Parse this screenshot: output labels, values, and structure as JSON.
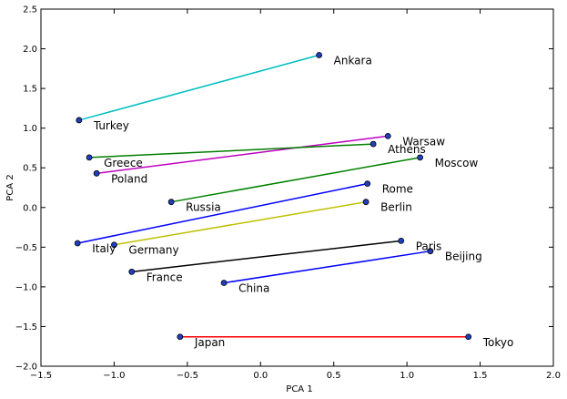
{
  "chart_data": {
    "type": "scatter",
    "title": "",
    "xlabel": "PCA 1",
    "ylabel": "PCA 2",
    "xlim": [
      -1.5,
      2.0
    ],
    "ylim": [
      -2.0,
      2.5
    ],
    "xticks": [
      -1.5,
      -1.0,
      -0.5,
      0.0,
      0.5,
      1.0,
      1.5,
      2.0
    ],
    "xtick_labels": [
      "−1.5",
      "−1.0",
      "−0.5",
      "0.0",
      "0.5",
      "1.0",
      "1.5",
      "2.0"
    ],
    "yticks": [
      -2.0,
      -1.5,
      -1.0,
      -0.5,
      0.0,
      0.5,
      1.0,
      1.5,
      2.0,
      2.5
    ],
    "ytick_labels": [
      "−2.0",
      "−1.5",
      "−1.0",
      "−0.5",
      "0.0",
      "0.5",
      "1.0",
      "1.5",
      "2.0",
      "2.5"
    ],
    "grid": false,
    "marker_color": "#1f3fbf",
    "points": [
      {
        "label": "Ankara",
        "x": 0.4,
        "y": 1.92
      },
      {
        "label": "Turkey",
        "x": -1.24,
        "y": 1.1
      },
      {
        "label": "Warsaw",
        "x": 0.87,
        "y": 0.9
      },
      {
        "label": "Athens",
        "x": 0.77,
        "y": 0.8
      },
      {
        "label": "Greece",
        "x": -1.17,
        "y": 0.63
      },
      {
        "label": "Poland",
        "x": -1.12,
        "y": 0.43
      },
      {
        "label": "Moscow",
        "x": 1.09,
        "y": 0.63
      },
      {
        "label": "Russia",
        "x": -0.61,
        "y": 0.07
      },
      {
        "label": "Rome",
        "x": 0.73,
        "y": 0.3
      },
      {
        "label": "Italy",
        "x": -1.25,
        "y": -0.45
      },
      {
        "label": "Berlin",
        "x": 0.72,
        "y": 0.07
      },
      {
        "label": "Germany",
        "x": -1.0,
        "y": -0.47
      },
      {
        "label": "Paris",
        "x": 0.96,
        "y": -0.42
      },
      {
        "label": "France",
        "x": -0.88,
        "y": -0.81
      },
      {
        "label": "Beijing",
        "x": 1.16,
        "y": -0.55
      },
      {
        "label": "China",
        "x": -0.25,
        "y": -0.95
      },
      {
        "label": "Tokyo",
        "x": 1.42,
        "y": -1.63
      },
      {
        "label": "Japan",
        "x": -0.55,
        "y": -1.63
      }
    ],
    "segments": [
      {
        "from": "Turkey",
        "to": "Ankara",
        "color": "#00bfbf"
      },
      {
        "from": "Poland",
        "to": "Warsaw",
        "color": "#bf00bf"
      },
      {
        "from": "Greece",
        "to": "Athens",
        "color": "#008000"
      },
      {
        "from": "Russia",
        "to": "Moscow",
        "color": "#008000"
      },
      {
        "from": "Italy",
        "to": "Rome",
        "color": "#0000ff"
      },
      {
        "from": "Germany",
        "to": "Berlin",
        "color": "#bfbf00"
      },
      {
        "from": "France",
        "to": "Paris",
        "color": "#000000"
      },
      {
        "from": "China",
        "to": "Beijing",
        "color": "#0000ff"
      },
      {
        "from": "Japan",
        "to": "Tokyo",
        "color": "#ff0000"
      }
    ]
  }
}
